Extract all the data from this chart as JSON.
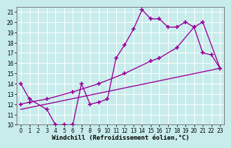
{
  "background_color": "#c8ecec",
  "grid_color": "#ffffff",
  "line_color": "#990099",
  "marker": "+",
  "marker_size": 5,
  "marker_lw": 1.2,
  "line_width": 1.0,
  "xlabel": "Windchill (Refroidissement éolien,°C)",
  "xlabel_fontsize": 6.5,
  "tick_fontsize": 5.5,
  "xlim": [
    -0.5,
    23.5
  ],
  "ylim": [
    10,
    21.5
  ],
  "yticks": [
    10,
    11,
    12,
    13,
    14,
    15,
    16,
    17,
    18,
    19,
    20,
    21
  ],
  "xticks": [
    0,
    1,
    2,
    3,
    4,
    5,
    6,
    7,
    8,
    9,
    10,
    11,
    12,
    13,
    14,
    15,
    16,
    17,
    18,
    19,
    20,
    21,
    22,
    23
  ],
  "line1_x": [
    0,
    1,
    3,
    4,
    5,
    6,
    7,
    8,
    9,
    10,
    11,
    12,
    13,
    14,
    15,
    16,
    17,
    18,
    19,
    20,
    21,
    22,
    23
  ],
  "line1_y": [
    14,
    12.5,
    11.5,
    10,
    10.0,
    10.0,
    14.0,
    12.0,
    12.2,
    12.5,
    16.5,
    17.8,
    19.3,
    21.2,
    20.3,
    20.3,
    19.5,
    19.5,
    20.0,
    19.5,
    17.0,
    16.8,
    15.5
  ],
  "line2_x": [
    0,
    1,
    3,
    6,
    9,
    12,
    15,
    16,
    18,
    20,
    21,
    23
  ],
  "line2_y": [
    12.0,
    12.2,
    12.5,
    13.2,
    14.0,
    15.0,
    16.2,
    16.5,
    17.5,
    19.5,
    20.0,
    15.5
  ],
  "line3_x": [
    0,
    23
  ],
  "line3_y": [
    11.5,
    15.5
  ]
}
